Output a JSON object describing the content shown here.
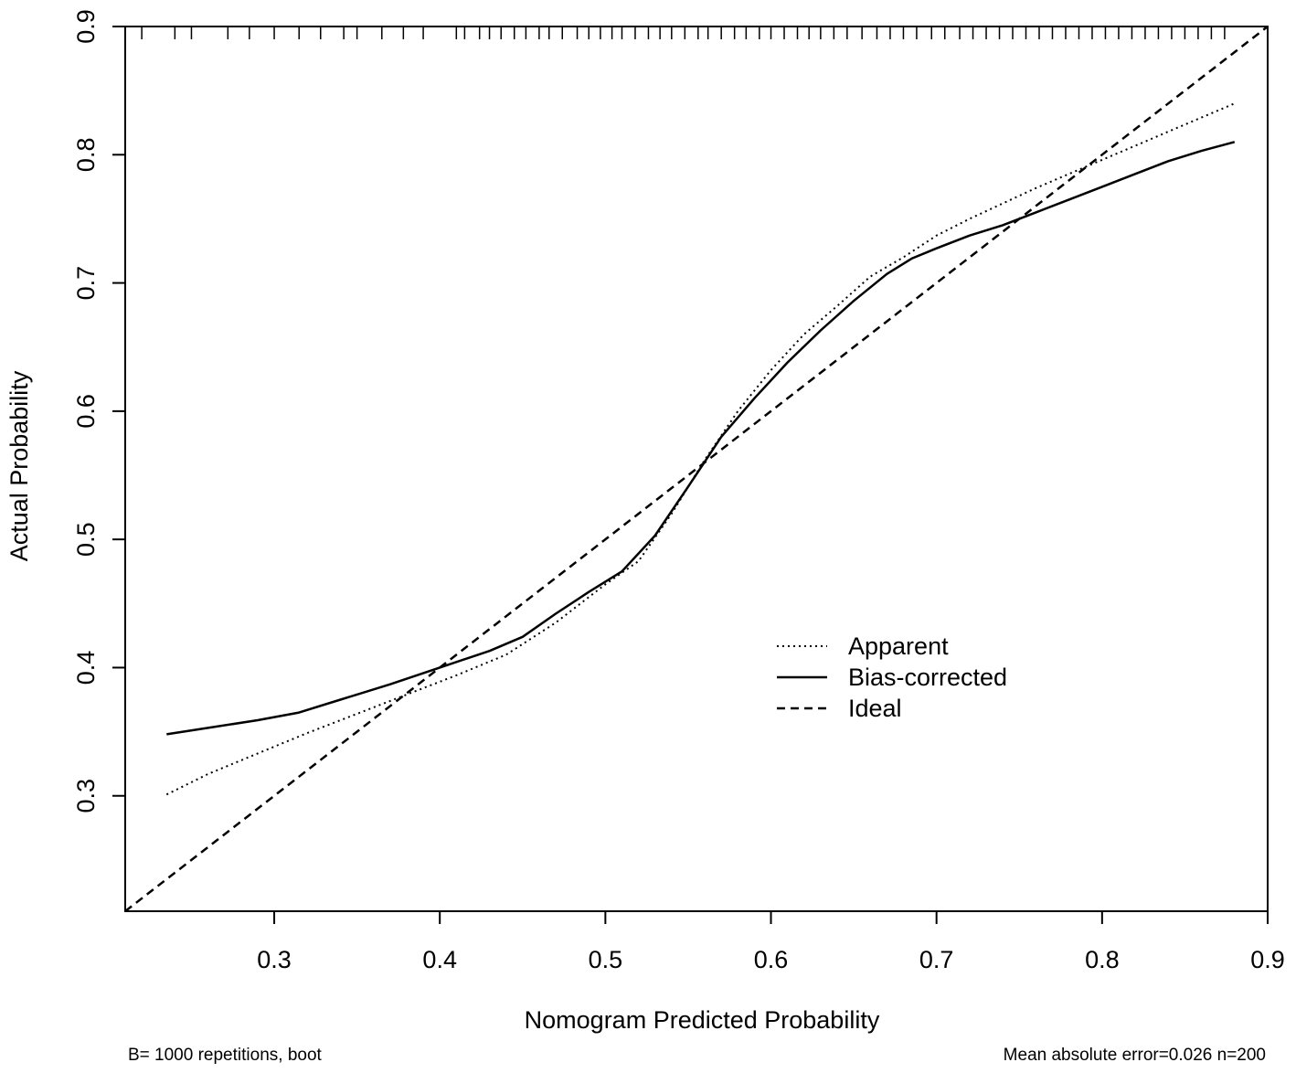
{
  "chart_data": {
    "type": "line",
    "xlabel": "Nomogram Predicted Probability",
    "ylabel": "Actual Probability",
    "xlim": [
      0.21,
      0.9
    ],
    "ylim": [
      0.21,
      0.9
    ],
    "x_ticks": [
      "0.3",
      "0.4",
      "0.5",
      "0.6",
      "0.7",
      "0.8",
      "0.9"
    ],
    "y_ticks": [
      "0.3",
      "0.4",
      "0.5",
      "0.6",
      "0.7",
      "0.8",
      "0.9"
    ],
    "grid": false,
    "legend_position": "center-right",
    "legend": [
      "Apparent",
      "Bias-corrected",
      "Ideal"
    ],
    "series": [
      {
        "name": "Apparent",
        "style": "dotted",
        "color": "#000000",
        "points": [
          [
            0.235,
            0.301
          ],
          [
            0.26,
            0.317
          ],
          [
            0.29,
            0.333
          ],
          [
            0.32,
            0.349
          ],
          [
            0.35,
            0.364
          ],
          [
            0.38,
            0.379
          ],
          [
            0.41,
            0.394
          ],
          [
            0.44,
            0.41
          ],
          [
            0.47,
            0.435
          ],
          [
            0.5,
            0.465
          ],
          [
            0.52,
            0.483
          ],
          [
            0.54,
            0.52
          ],
          [
            0.56,
            0.562
          ],
          [
            0.58,
            0.6
          ],
          [
            0.6,
            0.632
          ],
          [
            0.62,
            0.66
          ],
          [
            0.64,
            0.682
          ],
          [
            0.66,
            0.705
          ],
          [
            0.68,
            0.72
          ],
          [
            0.7,
            0.737
          ],
          [
            0.72,
            0.75
          ],
          [
            0.74,
            0.762
          ],
          [
            0.76,
            0.774
          ],
          [
            0.78,
            0.785
          ],
          [
            0.8,
            0.796
          ],
          [
            0.82,
            0.807
          ],
          [
            0.84,
            0.818
          ],
          [
            0.86,
            0.829
          ],
          [
            0.88,
            0.84
          ]
        ]
      },
      {
        "name": "Bias-corrected",
        "style": "solid",
        "color": "#000000",
        "points": [
          [
            0.235,
            0.348
          ],
          [
            0.26,
            0.353
          ],
          [
            0.29,
            0.359
          ],
          [
            0.315,
            0.365
          ],
          [
            0.34,
            0.375
          ],
          [
            0.37,
            0.387
          ],
          [
            0.4,
            0.4
          ],
          [
            0.43,
            0.413
          ],
          [
            0.45,
            0.424
          ],
          [
            0.47,
            0.442
          ],
          [
            0.49,
            0.459
          ],
          [
            0.51,
            0.475
          ],
          [
            0.53,
            0.503
          ],
          [
            0.55,
            0.541
          ],
          [
            0.57,
            0.58
          ],
          [
            0.59,
            0.61
          ],
          [
            0.61,
            0.638
          ],
          [
            0.63,
            0.663
          ],
          [
            0.65,
            0.686
          ],
          [
            0.67,
            0.707
          ],
          [
            0.685,
            0.719
          ],
          [
            0.7,
            0.727
          ],
          [
            0.72,
            0.737
          ],
          [
            0.74,
            0.745
          ],
          [
            0.76,
            0.755
          ],
          [
            0.78,
            0.765
          ],
          [
            0.8,
            0.775
          ],
          [
            0.82,
            0.785
          ],
          [
            0.84,
            0.795
          ],
          [
            0.86,
            0.803
          ],
          [
            0.88,
            0.81
          ]
        ]
      },
      {
        "name": "Ideal",
        "style": "dashed",
        "color": "#000000",
        "points": [
          [
            0.21,
            0.21
          ],
          [
            0.9,
            0.9
          ]
        ]
      }
    ],
    "rug": [
      {
        "x": 0.22,
        "len": 1
      },
      {
        "x": 0.24,
        "len": 1
      },
      {
        "x": 0.25,
        "len": 1
      },
      {
        "x": 0.272,
        "len": 1
      },
      {
        "x": 0.285,
        "len": 1
      },
      {
        "x": 0.3,
        "len": 1
      },
      {
        "x": 0.315,
        "len": 1
      },
      {
        "x": 0.328,
        "len": 1
      },
      {
        "x": 0.342,
        "len": 1
      },
      {
        "x": 0.35,
        "len": 1
      },
      {
        "x": 0.365,
        "len": 1
      },
      {
        "x": 0.378,
        "len": 1
      },
      {
        "x": 0.39,
        "len": 1
      },
      {
        "x": 0.41,
        "len": 1
      },
      {
        "x": 0.415,
        "len": 1
      },
      {
        "x": 0.424,
        "len": 1
      },
      {
        "x": 0.43,
        "len": 1
      },
      {
        "x": 0.437,
        "len": 1
      },
      {
        "x": 0.445,
        "len": 1
      },
      {
        "x": 0.452,
        "len": 1
      },
      {
        "x": 0.46,
        "len": 1
      },
      {
        "x": 0.466,
        "len": 1
      },
      {
        "x": 0.474,
        "len": 1
      },
      {
        "x": 0.483,
        "len": 1
      },
      {
        "x": 0.49,
        "len": 1
      },
      {
        "x": 0.497,
        "len": 1
      },
      {
        "x": 0.504,
        "len": 1
      },
      {
        "x": 0.51,
        "len": 1
      },
      {
        "x": 0.518,
        "len": 1
      },
      {
        "x": 0.526,
        "len": 1
      },
      {
        "x": 0.533,
        "len": 1
      },
      {
        "x": 0.54,
        "len": 1
      },
      {
        "x": 0.548,
        "len": 1
      },
      {
        "x": 0.556,
        "len": 1
      },
      {
        "x": 0.562,
        "len": 1
      },
      {
        "x": 0.57,
        "len": 1
      },
      {
        "x": 0.578,
        "len": 1
      },
      {
        "x": 0.585,
        "len": 1
      },
      {
        "x": 0.593,
        "len": 1
      },
      {
        "x": 0.6,
        "len": 1
      },
      {
        "x": 0.608,
        "len": 1
      },
      {
        "x": 0.616,
        "len": 1
      },
      {
        "x": 0.623,
        "len": 1
      },
      {
        "x": 0.63,
        "len": 1
      },
      {
        "x": 0.638,
        "len": 1
      },
      {
        "x": 0.646,
        "len": 1
      },
      {
        "x": 0.655,
        "len": 1
      },
      {
        "x": 0.664,
        "len": 1
      },
      {
        "x": 0.672,
        "len": 1
      },
      {
        "x": 0.68,
        "len": 1
      },
      {
        "x": 0.688,
        "len": 1
      },
      {
        "x": 0.697,
        "len": 1
      },
      {
        "x": 0.705,
        "len": 1
      },
      {
        "x": 0.714,
        "len": 1
      },
      {
        "x": 0.722,
        "len": 1
      },
      {
        "x": 0.73,
        "len": 1
      },
      {
        "x": 0.738,
        "len": 1
      },
      {
        "x": 0.746,
        "len": 1
      },
      {
        "x": 0.754,
        "len": 1
      },
      {
        "x": 0.762,
        "len": 1
      },
      {
        "x": 0.77,
        "len": 1
      },
      {
        "x": 0.778,
        "len": 1
      },
      {
        "x": 0.786,
        "len": 1
      },
      {
        "x": 0.794,
        "len": 1
      },
      {
        "x": 0.802,
        "len": 1
      },
      {
        "x": 0.81,
        "len": 1
      },
      {
        "x": 0.818,
        "len": 1
      },
      {
        "x": 0.826,
        "len": 1
      },
      {
        "x": 0.834,
        "len": 1
      },
      {
        "x": 0.842,
        "len": 1
      },
      {
        "x": 0.85,
        "len": 1
      },
      {
        "x": 0.858,
        "len": 1
      },
      {
        "x": 0.866,
        "len": 1
      },
      {
        "x": 0.874,
        "len": 1
      }
    ]
  },
  "legend_labels": {
    "apparent": "Apparent",
    "bias_corrected": "Bias-corrected",
    "ideal": "Ideal"
  },
  "footer": {
    "left": "B= 1000 repetitions, boot",
    "right": "Mean absolute error=0.026 n=200"
  }
}
